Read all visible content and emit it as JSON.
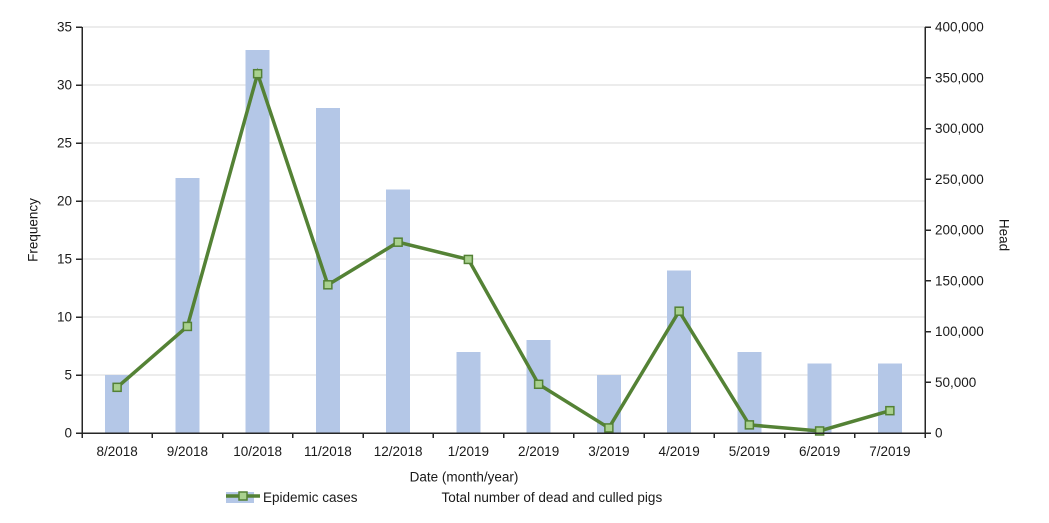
{
  "figure_name": "epidemic-cases-dual-axis-chart",
  "axes": {
    "left_title": "Frequency",
    "right_title": "Head",
    "x_title": "Date (month/year)"
  },
  "legend": {
    "bar_label": "Epidemic cases",
    "line_label": "Total number of dead and culled pigs"
  },
  "colors": {
    "bar_fill": "#b4c7e7",
    "line_stroke": "#548235",
    "marker_fill": "#a9d18e",
    "marker_stroke": "#538135",
    "gridline": "#d9d9d9",
    "axis": "#262626",
    "text": "#1a1a1a"
  },
  "chart_data": {
    "type": "bar",
    "subtype": "bar+line dual axis",
    "categories": [
      "8/2018",
      "9/2018",
      "10/2018",
      "11/2018",
      "12/2018",
      "1/2019",
      "2/2019",
      "3/2019",
      "4/2019",
      "5/2019",
      "6/2019",
      "7/2019"
    ],
    "series": [
      {
        "name": "Epidemic cases",
        "type": "bar",
        "axis": "left",
        "values": [
          5,
          22,
          33,
          28,
          21,
          7,
          8,
          5,
          14,
          7,
          6,
          6
        ]
      },
      {
        "name": "Total number of dead and culled pigs",
        "type": "line",
        "axis": "right",
        "values": [
          45000,
          105000,
          354000,
          146000,
          188000,
          171000,
          48000,
          5000,
          120000,
          8000,
          2000,
          22000
        ]
      }
    ],
    "title": "",
    "xlabel": "Date (month/year)",
    "left_axis": {
      "label": "Frequency",
      "min": 0,
      "max": 35,
      "step": 5,
      "ticks": [
        0,
        5,
        10,
        15,
        20,
        25,
        30,
        35
      ]
    },
    "right_axis": {
      "label": "Head",
      "min": 0,
      "max": 400000,
      "step": 50000,
      "tick_values": [
        0,
        50000,
        100000,
        150000,
        200000,
        250000,
        300000,
        350000,
        400000
      ],
      "tick_labels": [
        "0",
        "50,000",
        "100,000",
        "150,000",
        "200,000",
        "250,000",
        "300,000",
        "350,000",
        "400,000"
      ]
    },
    "grid": "horizontal, at left-axis steps",
    "legend_position": "bottom"
  }
}
